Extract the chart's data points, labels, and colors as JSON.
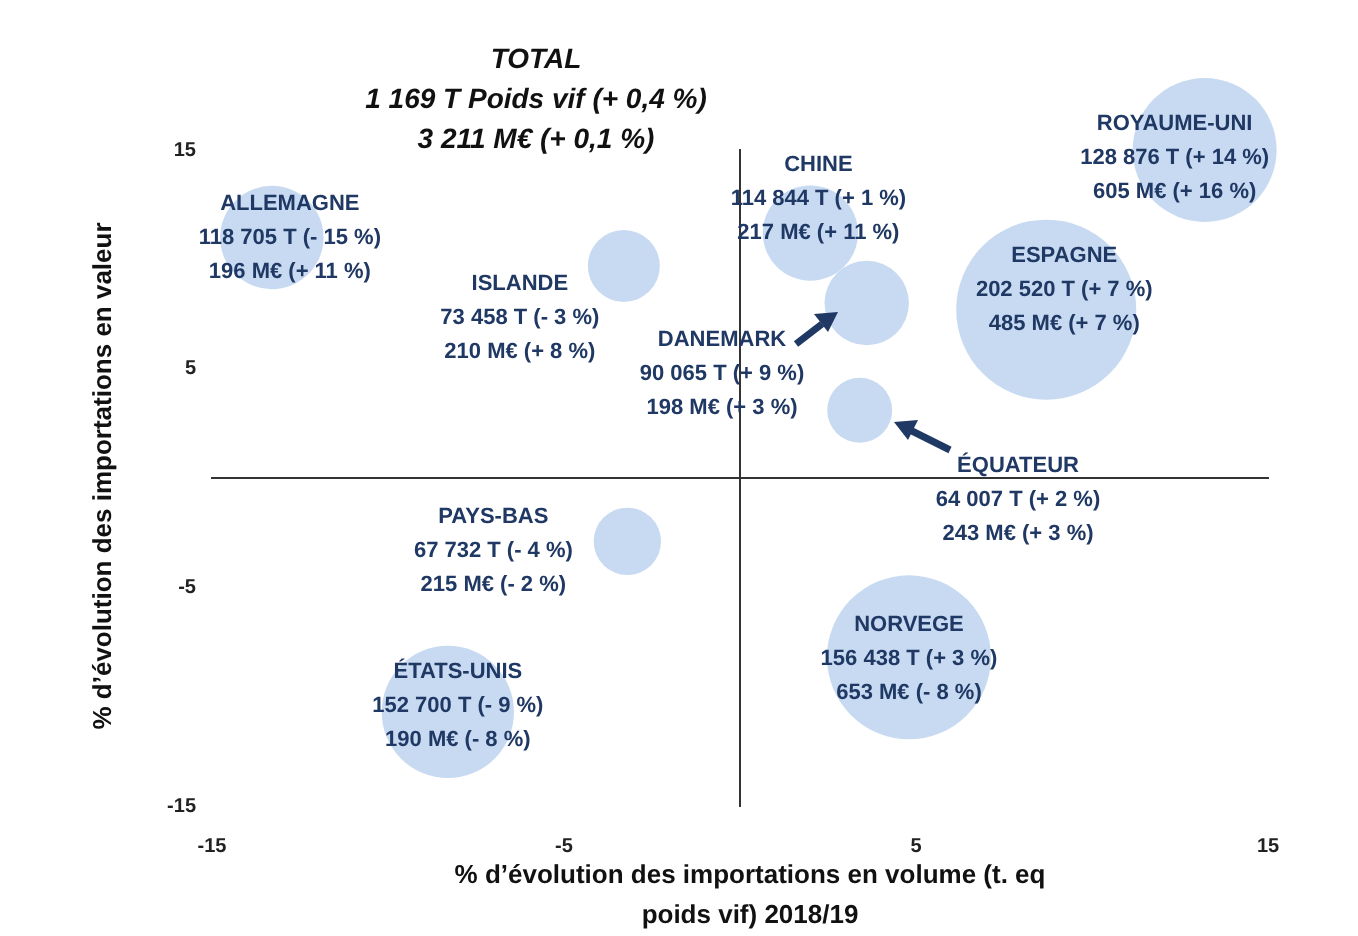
{
  "chart_data": {
    "type": "bubble",
    "title": "TOTAL",
    "subtitle": "1 169 T Poids vif (+ 0,4 %)\n3 211 M€ (+ 0,1 %)",
    "xlabel": "% d’évolution des importations en volume (t. eq poids vif) 2018/19",
    "ylabel": "% d’évolution des importations en valeur",
    "x": [
      -13.3,
      -3.3,
      2.0,
      3.6,
      3.4,
      8.7,
      13.2,
      -3.2,
      4.8,
      -8.3
    ],
    "values": [
      11.0,
      9.7,
      11.2,
      8.0,
      3.1,
      7.7,
      15,
      -2.9,
      -8.2,
      -10.7
    ],
    "sizes": [
      0.33,
      0.16,
      0.28,
      0.22,
      0.13,
      1,
      0.64,
      0.14,
      0.83,
      0.54
    ],
    "color": "#bdd3ee",
    "xlim": [
      -15,
      15
    ],
    "ylim": [
      -15,
      15
    ],
    "xticks": [
      -15,
      -5,
      5,
      15
    ],
    "yticks": [
      15,
      5,
      -5,
      -15
    ],
    "grid": false,
    "legend": false,
    "annotations": [
      {
        "text": "ALLEMAGNE\n118 705 T (- 15 %)\n196 M€ (+ 11 %)",
        "x": -13.3,
        "y": 11.0
      },
      {
        "text": "ISLANDE\n73 458 T (- 3 %)\n210 M€ (+ 8 %)",
        "x": -3.3,
        "y": 9.7
      },
      {
        "text": "CHINE\n114 844 T (+ 1 %)\n217 M€ (+ 11 %)",
        "x": 2.0,
        "y": 11.2
      },
      "DANEMARK\n90 065 T (+ 9 %)\n198 M€ (+ 3 %)",
      "ÉQUATEUR\n64 007 T (+ 2 %)\n243 M€ (+ 3 %)",
      {
        "text": "ESPAGNE\n202 520 T (+ 7 %)\n485 M€ (+ 7 %)",
        "x": 8.7,
        "y": 7.7
      },
      {
        "text": "ROYAUME-UNI\n128 876 T (+ 14 %)\n605 M€ (+ 16 %)",
        "x": 13.2,
        "y": 15
      },
      {
        "text": "PAYS-BAS\n67 732 T (- 4 %)\n215 M€ (- 2 %)",
        "x": -3.2,
        "y": -2.9
      },
      {
        "text": "NORVEGE\n156 438 T (+ 3 %)\n653 M€ (- 8 %)",
        "x": 4.8,
        "y": -8.2
      },
      {
        "text": "ÉTATS-UNIS\n152 700 T (- 9 %)\n190 M€ (- 8 %)",
        "x": -8.3,
        "y": -10.7
      }
    ]
  }
}
